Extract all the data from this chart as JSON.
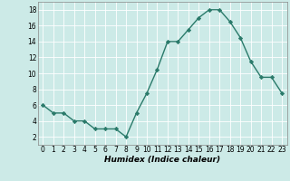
{
  "x": [
    0,
    1,
    2,
    3,
    4,
    5,
    6,
    7,
    8,
    9,
    10,
    11,
    12,
    13,
    14,
    15,
    16,
    17,
    18,
    19,
    20,
    21,
    22,
    23
  ],
  "y": [
    6,
    5,
    5,
    4,
    4,
    3,
    3,
    3,
    2,
    5,
    7.5,
    10.5,
    14,
    14,
    15.5,
    17,
    18,
    18,
    16.5,
    14.5,
    11.5,
    9.5,
    9.5,
    7.5
  ],
  "line_color": "#2a7a6a",
  "marker": "D",
  "marker_size": 2.2,
  "background_color": "#cceae7",
  "grid_color": "#ffffff",
  "xlabel": "Humidex (Indice chaleur)",
  "xlim": [
    -0.5,
    23.5
  ],
  "ylim": [
    1,
    19
  ],
  "yticks": [
    2,
    4,
    6,
    8,
    10,
    12,
    14,
    16,
    18
  ],
  "xticks": [
    0,
    1,
    2,
    3,
    4,
    5,
    6,
    7,
    8,
    9,
    10,
    11,
    12,
    13,
    14,
    15,
    16,
    17,
    18,
    19,
    20,
    21,
    22,
    23
  ],
  "xlabel_fontsize": 6.5,
  "tick_fontsize": 5.5,
  "line_width": 1.0
}
